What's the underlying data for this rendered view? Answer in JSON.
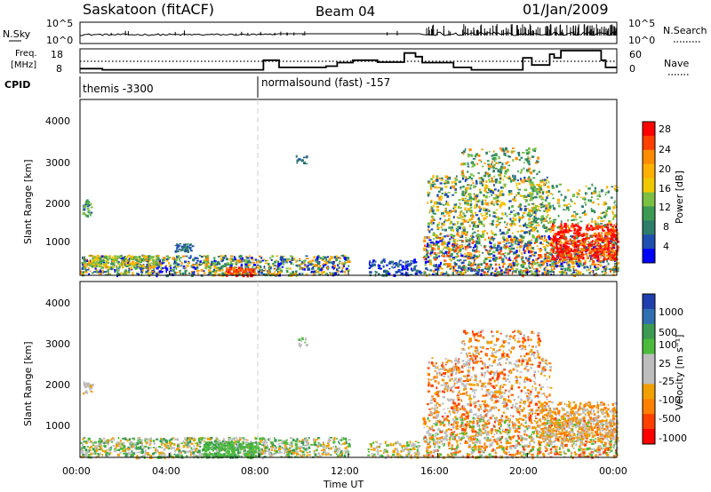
{
  "header": {
    "station": "Saskatoon (fitACF)",
    "beam": "Beam 04",
    "date": "01/Jan/2009"
  },
  "top_panel": {
    "left_label": "N.Sky",
    "left_ticks": [
      "10^5",
      "10^0"
    ],
    "right_label": "N.Search",
    "right_ticks": [
      "10^5",
      "10^0"
    ]
  },
  "freq_panel": {
    "left_label_1": "Freq.",
    "left_label_2": "[MHz]",
    "left_ticks": [
      "18",
      "8"
    ],
    "right_label": "Nave",
    "right_ticks": [
      "60",
      "0"
    ]
  },
  "cpid": {
    "label": "CPID",
    "modes": [
      {
        "name": "themis -3300"
      },
      {
        "name": "normalsound (fast) -157"
      }
    ]
  },
  "chart_data": [
    {
      "type": "heatmap",
      "title": "",
      "xlabel": "",
      "ylabel": "Slant Range [km]",
      "yticks": [
        "4000",
        "3000",
        "2000",
        "1000"
      ],
      "ylim": [
        180,
        4600
      ],
      "colorbar": {
        "label": "Power [dB]",
        "ticks": [
          "28",
          "24",
          "20",
          "16",
          "12",
          "8",
          "4"
        ],
        "colors": [
          "#ff0000",
          "#ff4000",
          "#ff8c00",
          "#ffb000",
          "#f0c800",
          "#7bc043",
          "#3c9a52",
          "#2e7d6b",
          "#1f4fb0",
          "#0000ff"
        ]
      }
    },
    {
      "type": "heatmap",
      "title": "",
      "xlabel": "Time UT",
      "ylabel": "Slant Range [km]",
      "yticks": [
        "4000",
        "3000",
        "2000",
        "1000"
      ],
      "ylim": [
        180,
        4600
      ],
      "xticks": [
        "00:00",
        "04:00",
        "08:00",
        "12:00",
        "16:00",
        "20:00",
        "00:00"
      ],
      "colorbar": {
        "label": "Velocity [m s⁻¹]",
        "ticks": [
          "1000",
          "500",
          "100",
          "25",
          "-25",
          "-100",
          "-500",
          "-1000"
        ],
        "colors": [
          "#1f3faf",
          "#2f6fb0",
          "#3c9a52",
          "#4cbb3c",
          "#bdbdbd",
          "#bdbdbd",
          "#f0a000",
          "#ff7f00",
          "#ff4000",
          "#ff0000"
        ]
      }
    }
  ]
}
